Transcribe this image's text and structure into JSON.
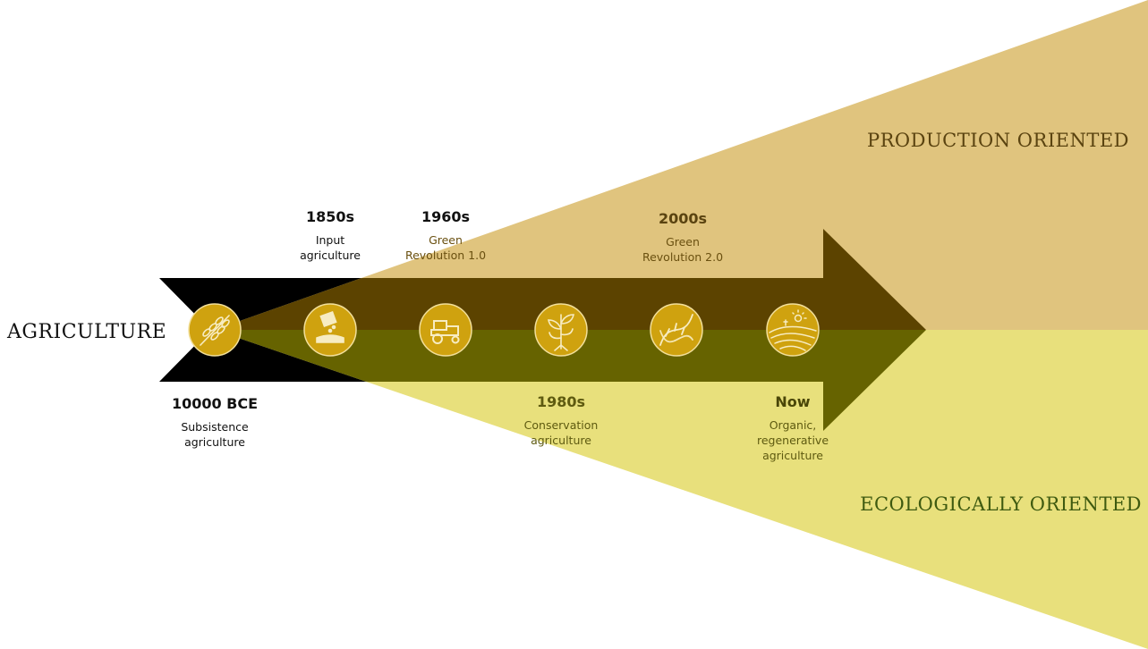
{
  "title": "AGRICULTURE",
  "directions": {
    "production": "PRODUCTION ORIENTED",
    "ecological": "ECOLOGICALLY ORIENTED"
  },
  "milestones": [
    {
      "year": "10000 BCE",
      "line1": "Subsistence",
      "line2": "agriculture",
      "icon": "wheat-icon"
    },
    {
      "year": "1850s",
      "line1": "Input",
      "line2": "agriculture",
      "icon": "fertilizer-icon"
    },
    {
      "year": "1960s",
      "line1": "Green",
      "line2": "Revolution 1.0",
      "icon": "tractor-icon"
    },
    {
      "year": "1980s",
      "line1": "Conservation",
      "line2": "agriculture",
      "icon": "seedling-icon"
    },
    {
      "year": "2000s",
      "line1": "Green",
      "line2": "Revolution 2.0",
      "icon": "dna-icon"
    },
    {
      "year": "Now",
      "line1": "Organic,",
      "line2": "regenerative",
      "line3": "agriculture",
      "icon": "landscape-icon"
    }
  ],
  "colors": {
    "production_fill": "#e0c47e",
    "ecological_fill": "#e8e07c",
    "arrow_black": "#000000",
    "arrow_over_production": "#5c4300",
    "arrow_over_ecological": "#666300",
    "circle_fill": "#cfa20f",
    "production_text": "#5a4310",
    "ecological_text": "#3e5a10",
    "label_dark": "#111111",
    "label_on_production": "#6a5010",
    "label_on_ecological": "#5e5a10"
  }
}
